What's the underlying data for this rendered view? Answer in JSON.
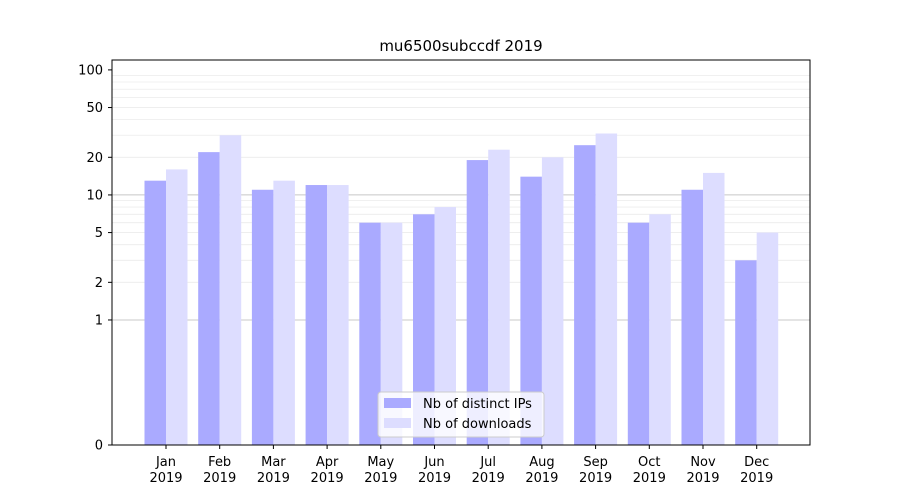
{
  "chart_data": {
    "type": "bar",
    "title": "mu6500subccdf 2019",
    "xlabel": "",
    "ylabel": "",
    "scale": "symlog",
    "ylim": [
      0,
      120
    ],
    "yticks": [
      {
        "value": 0,
        "label": "0"
      },
      {
        "value": 1,
        "label": "1"
      },
      {
        "value": 2,
        "label": "2"
      },
      {
        "value": 5,
        "label": "5"
      },
      {
        "value": 10,
        "label": "10"
      },
      {
        "value": 20,
        "label": "20"
      },
      {
        "value": 50,
        "label": "50"
      },
      {
        "value": 100,
        "label": "100"
      }
    ],
    "categories": [
      [
        "Jan",
        "2019"
      ],
      [
        "Feb",
        "2019"
      ],
      [
        "Mar",
        "2019"
      ],
      [
        "Apr",
        "2019"
      ],
      [
        "May",
        "2019"
      ],
      [
        "Jun",
        "2019"
      ],
      [
        "Jul",
        "2019"
      ],
      [
        "Aug",
        "2019"
      ],
      [
        "Sep",
        "2019"
      ],
      [
        "Oct",
        "2019"
      ],
      [
        "Nov",
        "2019"
      ],
      [
        "Dec",
        "2019"
      ]
    ],
    "series": [
      {
        "name": "Nb of distinct IPs",
        "color": "#aaaaff",
        "values": [
          13,
          22,
          11,
          12,
          6,
          7,
          19,
          14,
          25,
          6,
          11,
          3
        ]
      },
      {
        "name": "Nb of downloads",
        "color": "#ddddff",
        "values": [
          16,
          30,
          13,
          12,
          6,
          8,
          23,
          20,
          31,
          7,
          15,
          5
        ]
      }
    ],
    "grid": true,
    "legend": "bottom-center"
  }
}
